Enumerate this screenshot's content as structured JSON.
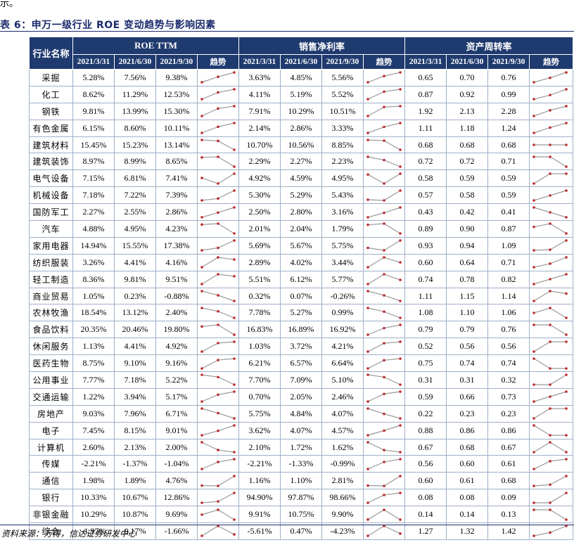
{
  "top_fragment": "示。",
  "caption": "表 6：申万一级行业 ROE 变动趋势与影响因素",
  "headers": {
    "industry": "行业名称",
    "groups": [
      "ROE TTM",
      "销售净利率",
      "资产周转率"
    ],
    "subheaders": [
      "2021/3/31",
      "2021/6/30",
      "2021/9/30",
      "趋势"
    ]
  },
  "rows": [
    {
      "name": "采掘",
      "v": [
        "5.28%",
        "7.56%",
        "9.38%",
        "3.63%",
        "4.85%",
        "5.56%",
        "0.65",
        "0.70",
        "0.76"
      ]
    },
    {
      "name": "化工",
      "v": [
        "8.62%",
        "11.29%",
        "12.53%",
        "4.11%",
        "5.19%",
        "5.52%",
        "0.87",
        "0.92",
        "0.99"
      ]
    },
    {
      "name": "钢铁",
      "v": [
        "9.81%",
        "13.99%",
        "15.30%",
        "7.91%",
        "10.29%",
        "10.51%",
        "1.92",
        "2.13",
        "2.28"
      ]
    },
    {
      "name": "有色金属",
      "v": [
        "6.15%",
        "8.60%",
        "10.11%",
        "2.14%",
        "2.86%",
        "3.33%",
        "1.11",
        "1.18",
        "1.24"
      ]
    },
    {
      "name": "建筑材料",
      "v": [
        "15.45%",
        "15.23%",
        "13.14%",
        "10.70%",
        "10.56%",
        "8.85%",
        "0.68",
        "0.68",
        "0.68"
      ]
    },
    {
      "name": "建筑装饰",
      "v": [
        "8.97%",
        "8.99%",
        "8.65%",
        "2.29%",
        "2.27%",
        "2.23%",
        "0.72",
        "0.72",
        "0.71"
      ]
    },
    {
      "name": "电气设备",
      "v": [
        "7.15%",
        "6.81%",
        "7.41%",
        "4.92%",
        "4.59%",
        "4.95%",
        "0.58",
        "0.59",
        "0.59"
      ]
    },
    {
      "name": "机械设备",
      "v": [
        "7.18%",
        "7.22%",
        "7.39%",
        "5.30%",
        "5.29%",
        "5.43%",
        "0.57",
        "0.58",
        "0.59"
      ]
    },
    {
      "name": "国防军工",
      "v": [
        "2.27%",
        "2.55%",
        "2.86%",
        "2.50%",
        "2.80%",
        "3.16%",
        "0.43",
        "0.42",
        "0.41"
      ]
    },
    {
      "name": "汽车",
      "v": [
        "4.88%",
        "4.95%",
        "4.23%",
        "2.01%",
        "2.04%",
        "1.79%",
        "0.89",
        "0.90",
        "0.87"
      ]
    },
    {
      "name": "家用电器",
      "v": [
        "14.94%",
        "15.55%",
        "17.38%",
        "5.69%",
        "5.67%",
        "5.75%",
        "0.93",
        "0.94",
        "1.09"
      ]
    },
    {
      "name": "纺织服装",
      "v": [
        "3.26%",
        "4.41%",
        "4.16%",
        "2.89%",
        "4.02%",
        "3.44%",
        "0.60",
        "0.64",
        "0.71"
      ]
    },
    {
      "name": "轻工制造",
      "v": [
        "8.36%",
        "9.81%",
        "9.51%",
        "5.51%",
        "6.12%",
        "5.77%",
        "0.74",
        "0.78",
        "0.82"
      ]
    },
    {
      "name": "商业贸易",
      "v": [
        "1.05%",
        "0.23%",
        "-0.88%",
        "0.32%",
        "0.07%",
        "-0.26%",
        "1.11",
        "1.15",
        "1.14"
      ]
    },
    {
      "name": "农林牧渔",
      "v": [
        "18.54%",
        "13.12%",
        "2.40%",
        "7.78%",
        "5.27%",
        "0.99%",
        "1.08",
        "1.10",
        "1.06"
      ]
    },
    {
      "name": "食品饮料",
      "v": [
        "20.35%",
        "20.46%",
        "19.80%",
        "16.83%",
        "16.89%",
        "16.92%",
        "0.79",
        "0.79",
        "0.76"
      ]
    },
    {
      "name": "休闲服务",
      "v": [
        "1.13%",
        "4.41%",
        "4.92%",
        "1.03%",
        "3.72%",
        "4.21%",
        "0.52",
        "0.56",
        "0.56"
      ]
    },
    {
      "name": "医药生物",
      "v": [
        "8.75%",
        "9.10%",
        "9.16%",
        "6.21%",
        "6.57%",
        "6.64%",
        "0.75",
        "0.74",
        "0.74"
      ]
    },
    {
      "name": "公用事业",
      "v": [
        "7.77%",
        "7.18%",
        "5.22%",
        "7.70%",
        "7.09%",
        "5.10%",
        "0.31",
        "0.31",
        "0.32"
      ]
    },
    {
      "name": "交通运输",
      "v": [
        "1.22%",
        "3.94%",
        "5.17%",
        "0.70%",
        "2.05%",
        "2.46%",
        "0.59",
        "0.66",
        "0.73"
      ]
    },
    {
      "name": "房地产",
      "v": [
        "9.03%",
        "7.96%",
        "6.71%",
        "5.75%",
        "4.84%",
        "4.07%",
        "0.22",
        "0.23",
        "0.23"
      ]
    },
    {
      "name": "电子",
      "v": [
        "7.45%",
        "8.15%",
        "9.01%",
        "3.62%",
        "4.07%",
        "4.57%",
        "0.88",
        "0.86",
        "0.86"
      ]
    },
    {
      "name": "计算机",
      "v": [
        "2.60%",
        "2.13%",
        "2.00%",
        "2.10%",
        "1.72%",
        "1.62%",
        "0.67",
        "0.68",
        "0.67"
      ]
    },
    {
      "name": "传媒",
      "v": [
        "-2.21%",
        "-1.37%",
        "-1.04%",
        "-2.21%",
        "-1.33%",
        "-0.99%",
        "0.56",
        "0.60",
        "0.61"
      ]
    },
    {
      "name": "通信",
      "v": [
        "1.98%",
        "1.89%",
        "4.76%",
        "1.16%",
        "1.10%",
        "2.81%",
        "0.60",
        "0.61",
        "0.68"
      ]
    },
    {
      "name": "银行",
      "v": [
        "10.33%",
        "10.67%",
        "12.86%",
        "94.90%",
        "97.87%",
        "98.66%",
        "0.08",
        "0.08",
        "0.09"
      ]
    },
    {
      "name": "非银金融",
      "v": [
        "10.29%",
        "10.87%",
        "9.69%",
        "9.91%",
        "10.75%",
        "9.90%",
        "0.14",
        "0.14",
        "0.13"
      ]
    },
    {
      "name": "综合",
      "v": [
        "-1.97%",
        "0.17%",
        "-1.66%",
        "-5.61%",
        "0.47%",
        "-4.23%",
        "1.27",
        "1.32",
        "1.42"
      ]
    }
  ],
  "spark_colors": {
    "line": "#9a9a9a",
    "marker": "#c0282d"
  },
  "source": "资料来源：万得，信达证券研发中心"
}
